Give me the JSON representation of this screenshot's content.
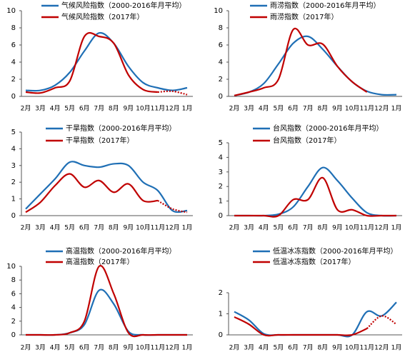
{
  "chart_data": [
    {
      "type": "line",
      "categories": [
        "2月",
        "3月",
        "4月",
        "5月",
        "6月",
        "7月",
        "8月",
        "9月",
        "10月",
        "11月",
        "12月",
        "1月"
      ],
      "ylim": [
        0,
        10
      ],
      "yticks": [
        0,
        2,
        4,
        6,
        8,
        10
      ],
      "legend": "top",
      "series": [
        {
          "name": "气候风险指数（2000-2016年月平均）",
          "color": "#1f6fb5",
          "values": [
            0.7,
            0.7,
            1.3,
            2.8,
            5.3,
            7.4,
            6.2,
            3.5,
            1.6,
            1.0,
            0.7,
            1.0
          ]
        },
        {
          "name": "气候风险指数（2017年）",
          "color": "#c00000",
          "dashed_from": 9,
          "values": [
            0.5,
            0.4,
            1.0,
            1.8,
            7.0,
            7.0,
            6.2,
            2.5,
            0.8,
            0.5,
            0.6,
            0.2
          ]
        }
      ]
    },
    {
      "type": "line",
      "categories": [
        "2月",
        "3月",
        "4月",
        "5月",
        "6月",
        "7月",
        "8月",
        "9月",
        "10月",
        "11月",
        "12月",
        "1月"
      ],
      "ylim": [
        0,
        10
      ],
      "yticks": [
        0,
        2,
        4,
        6,
        8,
        10
      ],
      "legend": "top",
      "series": [
        {
          "name": "雨涝指数（2000-2016年月平均）",
          "color": "#1f6fb5",
          "values": [
            0.1,
            0.5,
            1.5,
            3.8,
            6.2,
            7.0,
            5.5,
            3.5,
            1.7,
            0.6,
            0.2,
            0.2
          ]
        },
        {
          "name": "雨涝指数（2017年）",
          "color": "#c00000",
          "values": [
            0.1,
            0.5,
            1.0,
            2.0,
            7.8,
            6.0,
            6.1,
            3.5,
            1.7,
            0.5,
            null,
            null
          ]
        }
      ]
    },
    {
      "type": "line",
      "categories": [
        "2月",
        "3月",
        "4月",
        "5月",
        "6月",
        "7月",
        "8月",
        "9月",
        "10月",
        "11月",
        "12月",
        "1月"
      ],
      "ylim": [
        0,
        5
      ],
      "yticks": [
        0,
        1,
        2,
        3,
        4,
        5
      ],
      "legend": "top",
      "series": [
        {
          "name": "干旱指数（2000-2016年月平均）",
          "color": "#1f6fb5",
          "values": [
            0.4,
            1.3,
            2.2,
            3.2,
            3.0,
            2.9,
            3.1,
            3.0,
            2.0,
            1.5,
            0.3,
            0.3
          ]
        },
        {
          "name": "干旱指数（2017年）",
          "color": "#c00000",
          "dashed_from": 9,
          "values": [
            0.2,
            0.8,
            1.8,
            2.5,
            1.7,
            2.1,
            1.4,
            1.9,
            0.9,
            0.9,
            0.4,
            0.2
          ]
        }
      ]
    },
    {
      "type": "line",
      "categories": [
        "2月",
        "3月",
        "4月",
        "5月",
        "6月",
        "7月",
        "8月",
        "9月",
        "10月",
        "11月",
        "12月",
        "1月"
      ],
      "ylim": [
        0,
        5
      ],
      "yticks": [
        0,
        1,
        2,
        3,
        4,
        5
      ],
      "legend": "top",
      "series": [
        {
          "name": "台风指数（2000-2016年月平均）",
          "color": "#1f6fb5",
          "values": [
            0,
            0,
            0,
            0.1,
            0.6,
            2.0,
            3.3,
            2.4,
            1.2,
            0.2,
            0,
            0
          ]
        },
        {
          "name": "台风指数（2017年）",
          "color": "#c00000",
          "values": [
            0,
            0,
            0,
            0,
            1.1,
            1.1,
            2.6,
            0.4,
            0.4,
            0,
            0,
            0
          ]
        }
      ]
    },
    {
      "type": "line",
      "categories": [
        "2月",
        "3月",
        "4月",
        "5月",
        "6月",
        "7月",
        "8月",
        "9月",
        "10月",
        "11月",
        "12月",
        "1月"
      ],
      "ylim": [
        0,
        10
      ],
      "yticks": [
        0,
        2,
        4,
        6,
        8,
        10
      ],
      "legend": "top",
      "series": [
        {
          "name": "高温指数（2000-2016年月平均）",
          "color": "#1f6fb5",
          "values": [
            0,
            0,
            0,
            0.3,
            1.5,
            6.5,
            4.5,
            0.5,
            0,
            0,
            0,
            0
          ]
        },
        {
          "name": "高温指数（2017年）",
          "color": "#c00000",
          "values": [
            0,
            0,
            0,
            0.3,
            2.0,
            10.0,
            6.0,
            0.3,
            0,
            0,
            0,
            0
          ]
        }
      ]
    },
    {
      "type": "line",
      "categories": [
        "2月",
        "3月",
        "4月",
        "5月",
        "6月",
        "7月",
        "8月",
        "9月",
        "10月",
        "11月",
        "12月",
        "1月"
      ],
      "ylim": [
        0,
        2
      ],
      "yticks": [
        0,
        1,
        2
      ],
      "legend": "top",
      "series": [
        {
          "name": "低温冰冻指数（2000-2016年月平均）",
          "color": "#1f6fb5",
          "values": [
            1.1,
            0.7,
            0.05,
            0,
            0,
            0,
            0,
            0,
            0,
            1.1,
            0.9,
            1.55
          ]
        },
        {
          "name": "低温冰冻指数（2017年）",
          "color": "#c00000",
          "dashed_from": 9,
          "values": [
            0.85,
            0.5,
            0,
            0,
            0,
            0,
            0,
            0,
            0,
            0.3,
            0.9,
            0.5
          ]
        }
      ]
    }
  ]
}
